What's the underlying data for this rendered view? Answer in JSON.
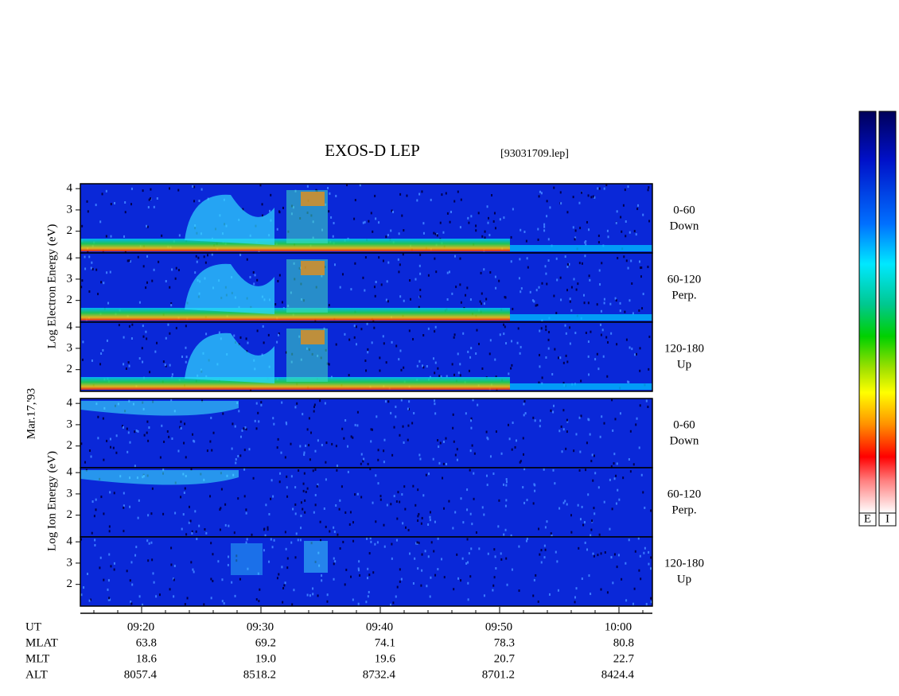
{
  "title": "EXOS-D LEP",
  "file": "[93031709.lep]",
  "date_label": "Mar.17,'93",
  "electron_axis_label": "Log  Electron  Energy (eV)",
  "ion_axis_label": "Log  Ion  Energy (eV)",
  "ylim": [
    0.98,
    4.23
  ],
  "yticks": [
    2,
    3,
    4
  ],
  "electron_panels": [
    {
      "pitch": "0-60",
      "direction": "Down"
    },
    {
      "pitch": "60-120",
      "direction": "Perp."
    },
    {
      "pitch": "120-180",
      "direction": "Up"
    }
  ],
  "ion_panels": [
    {
      "pitch": "0-60",
      "direction": "Down"
    },
    {
      "pitch": "60-120",
      "direction": "Perp."
    },
    {
      "pitch": "120-180",
      "direction": "Up"
    }
  ],
  "time_ticks": [
    "09:20",
    "09:30",
    "09:40",
    "09:50",
    "10:00"
  ],
  "ephemeris": [
    {
      "label": "UT",
      "values": []
    },
    {
      "label": "MLAT",
      "values": [
        "63.8",
        "69.2",
        "74.1",
        "78.3",
        "80.8"
      ]
    },
    {
      "label": "MLT",
      "values": [
        "18.6",
        "19.0",
        "19.6",
        "20.7",
        "22.7"
      ]
    },
    {
      "label": "ALT",
      "values": [
        "8057.4",
        "8518.2",
        "8732.4",
        "8701.2",
        "8424.4"
      ]
    }
  ],
  "colorbars": [
    "E",
    "I"
  ]
}
